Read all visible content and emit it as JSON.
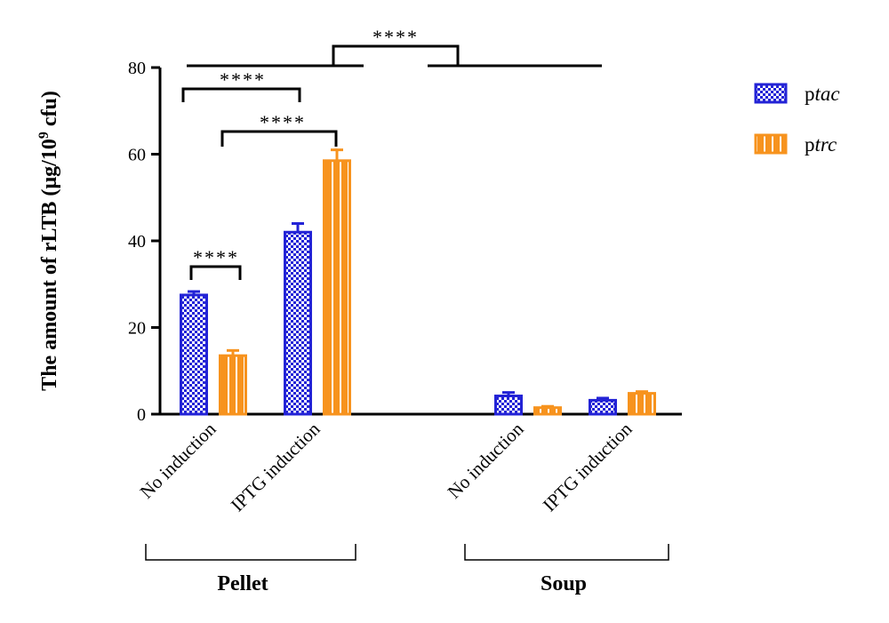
{
  "chart_data": {
    "type": "bar",
    "ylabel_main": "The amount of rLTB (µg/10",
    "ylabel_sup": "9",
    "ylabel_tail": " cfu)",
    "ylim": [
      0,
      80
    ],
    "yticks": [
      "0",
      "20",
      "40",
      "60",
      "80"
    ],
    "ytick_values": [
      0,
      20,
      40,
      60,
      80
    ],
    "categories": [
      "No induction",
      "IPTG induction",
      "No induction",
      "IPTG induction"
    ],
    "groups": [
      {
        "label": "Pellet",
        "categories": [
          0,
          1
        ]
      },
      {
        "label": "Soup",
        "categories": [
          2,
          3
        ]
      }
    ],
    "series": [
      {
        "legend_prefix": "p",
        "legend_italic": "tac",
        "color": "#2323d6",
        "values": [
          27.5,
          42,
          4.2,
          3.2
        ],
        "errors": [
          0.8,
          2.0,
          0.8,
          0.5
        ]
      },
      {
        "legend_prefix": "p",
        "legend_italic": "trc",
        "color": "#f7931e",
        "values": [
          13.5,
          58.5,
          1.5,
          4.8
        ],
        "errors": [
          1.2,
          2.5,
          0.3,
          0.4
        ]
      }
    ],
    "grid": false,
    "legend_position": "top-right",
    "significance": [
      {
        "label": "****",
        "kind": "pair-bracket",
        "desc": "no-induction pellet ptac vs ptrc"
      },
      {
        "label": "****",
        "kind": "top-bracket",
        "desc": "ptac no induction vs IPTG induction"
      },
      {
        "label": "****",
        "kind": "top-bracket",
        "desc": "ptrc no induction vs IPTG induction"
      },
      {
        "label": "****",
        "kind": "group-bracket",
        "desc": "Pellet vs Soup"
      }
    ]
  }
}
